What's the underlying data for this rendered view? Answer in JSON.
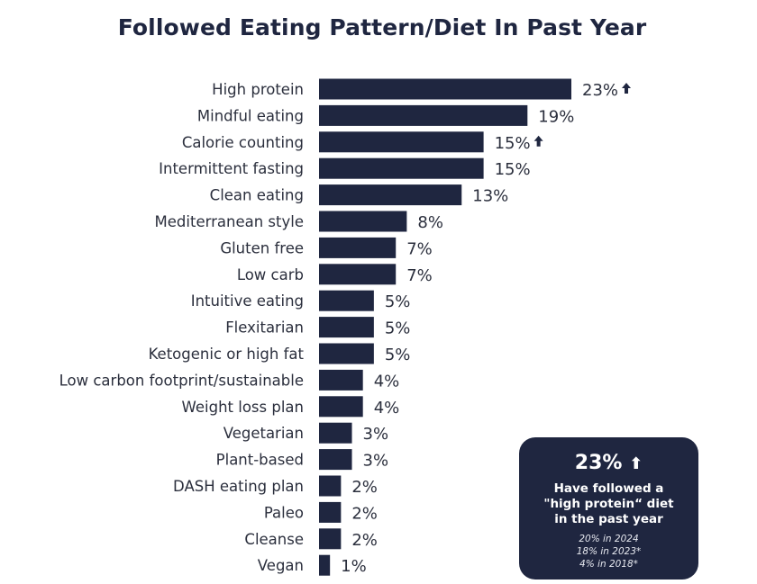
{
  "title": "Followed Eating Pattern/Diet In Past Year",
  "chart_data": {
    "type": "bar",
    "orientation": "horizontal",
    "categories": [
      "High protein",
      "Mindful eating",
      "Calorie counting",
      "Intermittent fasting",
      "Clean eating",
      "Mediterranean style",
      "Gluten free",
      "Low carb",
      "Intuitive eating",
      "Flexitarian",
      "Ketogenic or high fat",
      "Low carbon footprint/sustainable",
      "Weight loss plan",
      "Vegetarian",
      "Plant-based",
      "DASH eating plan",
      "Paleo",
      "Cleanse",
      "Vegan"
    ],
    "values": [
      23,
      19,
      15,
      15,
      13,
      8,
      7,
      7,
      5,
      5,
      5,
      4,
      4,
      3,
      3,
      2,
      2,
      2,
      1
    ],
    "value_labels": [
      "23%",
      "19%",
      "15%",
      "15%",
      "13%",
      "8%",
      "7%",
      "7%",
      "5%",
      "5%",
      "5%",
      "4%",
      "4%",
      "3%",
      "3%",
      "2%",
      "2%",
      "2%",
      "1%"
    ],
    "increase_markers": [
      true,
      false,
      true,
      false,
      false,
      false,
      false,
      false,
      false,
      false,
      false,
      false,
      false,
      false,
      false,
      false,
      false,
      false,
      false
    ],
    "bar_color": "#1f2640",
    "xlim": [
      0,
      23
    ],
    "grid": false,
    "legend": false
  },
  "callout": {
    "value": "23%",
    "up_icon": "up-arrow-icon",
    "description": "Have followed a \"high protein“ diet in the past year",
    "history": [
      "20% in 2024",
      "18% in 2023*",
      "4% in 2018*"
    ]
  }
}
